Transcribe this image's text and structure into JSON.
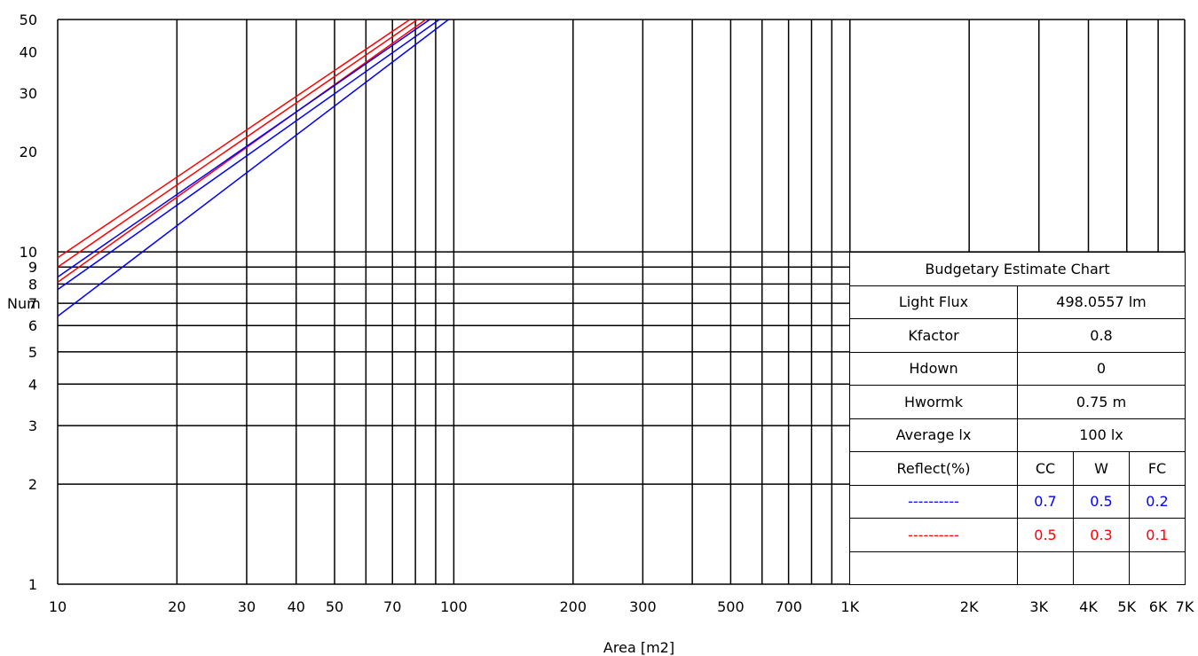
{
  "chart_data": {
    "type": "line",
    "x_scale": "log",
    "y_scale": "log",
    "xlim": [
      10,
      7000
    ],
    "ylim": [
      1,
      50
    ],
    "xlabel": "Area [m2]",
    "ylabel": "Num",
    "x_ticks": [
      {
        "value": 10,
        "label": "10"
      },
      {
        "value": 20,
        "label": "20"
      },
      {
        "value": 30,
        "label": "30"
      },
      {
        "value": 40,
        "label": "40"
      },
      {
        "value": 50,
        "label": "50"
      },
      {
        "value": 70,
        "label": "70"
      },
      {
        "value": 100,
        "label": "100"
      },
      {
        "value": 200,
        "label": "200"
      },
      {
        "value": 300,
        "label": "300"
      },
      {
        "value": 500,
        "label": "500"
      },
      {
        "value": 700,
        "label": "700"
      },
      {
        "value": 1000,
        "label": "1K"
      },
      {
        "value": 2000,
        "label": "2K"
      },
      {
        "value": 3000,
        "label": "3K"
      },
      {
        "value": 4000,
        "label": "4K"
      },
      {
        "value": 5000,
        "label": "5K"
      },
      {
        "value": 6000,
        "label": "6K"
      },
      {
        "value": 7000,
        "label": "7K"
      }
    ],
    "x_gridlines": [
      10,
      20,
      30,
      40,
      50,
      60,
      70,
      80,
      90,
      100,
      200,
      300,
      400,
      500,
      600,
      700,
      800,
      900,
      1000,
      2000,
      3000,
      4000,
      5000,
      6000,
      7000
    ],
    "y_ticks": [
      {
        "value": 1,
        "label": "1"
      },
      {
        "value": 2,
        "label": "2"
      },
      {
        "value": 3,
        "label": "3"
      },
      {
        "value": 4,
        "label": "4"
      },
      {
        "value": 5,
        "label": "5"
      },
      {
        "value": 6,
        "label": "6"
      },
      {
        "value": 7,
        "label": "7"
      },
      {
        "value": 8,
        "label": "8"
      },
      {
        "value": 9,
        "label": "9"
      },
      {
        "value": 10,
        "label": "10"
      },
      {
        "value": 20,
        "label": "20"
      },
      {
        "value": 30,
        "label": "30"
      },
      {
        "value": 40,
        "label": "40"
      },
      {
        "value": 50,
        "label": "50"
      }
    ],
    "y_gridlines": [
      1,
      2,
      3,
      4,
      5,
      6,
      7,
      8,
      9,
      10
    ],
    "grid": true,
    "series": [
      {
        "color": "#ff0000",
        "x": [
          10,
          77.5
        ],
        "y": [
          9.6,
          50
        ]
      },
      {
        "color": "#ff0000",
        "x": [
          10,
          81
        ],
        "y": [
          9.0,
          50
        ]
      },
      {
        "color": "#ff0000",
        "x": [
          10,
          85
        ],
        "y": [
          8.1,
          50
        ]
      },
      {
        "color": "#0000ff",
        "x": [
          10,
          87
        ],
        "y": [
          8.4,
          50
        ]
      },
      {
        "color": "#0000ff",
        "x": [
          10,
          92
        ],
        "y": [
          7.7,
          50
        ]
      },
      {
        "color": "#0000ff",
        "x": [
          10,
          97
        ],
        "y": [
          6.4,
          50
        ]
      }
    ]
  },
  "info_table": {
    "title": "Budgetary Estimate Chart",
    "rows": [
      {
        "label": "Light Flux",
        "value": "498.0557 lm"
      },
      {
        "label": "Kfactor",
        "value": "0.8"
      },
      {
        "label": "Hdown",
        "value": "0"
      },
      {
        "label": "Hwormk",
        "value": "0.75 m"
      },
      {
        "label": "Average lx",
        "value": "100 lx"
      }
    ],
    "reflect_header": {
      "label": "Reflect(%)",
      "cc": "CC",
      "w": "W",
      "fc": "FC"
    },
    "legend_rows": [
      {
        "line": "----------",
        "color": "#0000ff",
        "cc": "0.7",
        "w": "0.5",
        "fc": "0.2"
      },
      {
        "line": "----------",
        "color": "#ff0000",
        "cc": "0.5",
        "w": "0.3",
        "fc": "0.1"
      }
    ]
  }
}
